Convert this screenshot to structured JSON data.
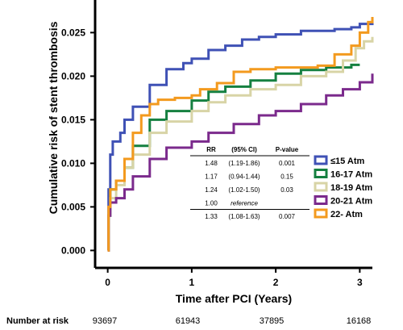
{
  "chart_data": {
    "type": "line",
    "xlabel": "Time after PCI (Years)",
    "ylabel": "Cumulative risk of stent thrombosis",
    "xlim": [
      -0.15,
      3.15
    ],
    "ylim": [
      -0.002,
      0.028
    ],
    "x_ticks": [
      0,
      1,
      2,
      3
    ],
    "x_tick_labels": [
      "0",
      "1",
      "2",
      "3"
    ],
    "y_ticks": [
      0.0,
      0.005,
      0.01,
      0.015,
      0.02,
      0.025
    ],
    "y_tick_labels": [
      "0.000",
      "0.005",
      "0.010",
      "0.015",
      "0.020",
      "0.025"
    ],
    "series": [
      {
        "name": "≤15 Atm",
        "color": "#3f51b5",
        "points": [
          [
            0,
            0
          ],
          [
            0.01,
            0.007
          ],
          [
            0.03,
            0.011
          ],
          [
            0.06,
            0.0125
          ],
          [
            0.15,
            0.0135
          ],
          [
            0.2,
            0.015
          ],
          [
            0.3,
            0.0165
          ],
          [
            0.5,
            0.019
          ],
          [
            0.7,
            0.0208
          ],
          [
            0.9,
            0.0215
          ],
          [
            1.0,
            0.022
          ],
          [
            1.2,
            0.023
          ],
          [
            1.4,
            0.0235
          ],
          [
            1.6,
            0.0242
          ],
          [
            1.8,
            0.0245
          ],
          [
            2.0,
            0.0248
          ],
          [
            2.3,
            0.0252
          ],
          [
            2.7,
            0.0254
          ],
          [
            2.9,
            0.0256
          ],
          [
            3.0,
            0.026
          ],
          [
            3.15,
            0.0262
          ]
        ]
      },
      {
        "name": "16-17 Atm",
        "color": "#158040",
        "points": [
          [
            0,
            0
          ],
          [
            0.01,
            0.004
          ],
          [
            0.03,
            0.007
          ],
          [
            0.1,
            0.008
          ],
          [
            0.2,
            0.0095
          ],
          [
            0.3,
            0.012
          ],
          [
            0.5,
            0.015
          ],
          [
            0.7,
            0.016
          ],
          [
            1.0,
            0.0172
          ],
          [
            1.2,
            0.0182
          ],
          [
            1.4,
            0.0188
          ],
          [
            1.7,
            0.0195
          ],
          [
            2.0,
            0.0203
          ],
          [
            2.3,
            0.0207
          ],
          [
            2.6,
            0.021
          ],
          [
            2.8,
            0.021
          ],
          [
            2.9,
            0.0213
          ],
          [
            3.0,
            0.0213
          ]
        ]
      },
      {
        "name": "18-19 Atm",
        "color": "#d8d4a6",
        "points": [
          [
            0,
            0
          ],
          [
            0.01,
            0.004
          ],
          [
            0.03,
            0.006
          ],
          [
            0.1,
            0.0075
          ],
          [
            0.2,
            0.0095
          ],
          [
            0.3,
            0.011
          ],
          [
            0.5,
            0.0135
          ],
          [
            0.7,
            0.0148
          ],
          [
            1.0,
            0.016
          ],
          [
            1.2,
            0.017
          ],
          [
            1.4,
            0.0178
          ],
          [
            1.7,
            0.0185
          ],
          [
            2.0,
            0.019
          ],
          [
            2.3,
            0.02
          ],
          [
            2.6,
            0.0205
          ],
          [
            2.8,
            0.0218
          ],
          [
            2.95,
            0.0232
          ],
          [
            3.05,
            0.024
          ],
          [
            3.15,
            0.0245
          ]
        ]
      },
      {
        "name": "20-21 Atm",
        "color": "#7b2a8c",
        "points": [
          [
            0,
            0
          ],
          [
            0.01,
            0.004
          ],
          [
            0.03,
            0.0055
          ],
          [
            0.1,
            0.006
          ],
          [
            0.2,
            0.007
          ],
          [
            0.3,
            0.0085
          ],
          [
            0.5,
            0.0105
          ],
          [
            0.7,
            0.0118
          ],
          [
            1.0,
            0.0125
          ],
          [
            1.2,
            0.0135
          ],
          [
            1.5,
            0.0145
          ],
          [
            1.8,
            0.0155
          ],
          [
            2.0,
            0.016
          ],
          [
            2.3,
            0.0168
          ],
          [
            2.6,
            0.0178
          ],
          [
            2.8,
            0.0185
          ],
          [
            3.0,
            0.0193
          ],
          [
            3.15,
            0.0203
          ]
        ]
      },
      {
        "name": "22- Atm",
        "color": "#f39a1e",
        "points": [
          [
            0,
            0
          ],
          [
            0.01,
            0.005
          ],
          [
            0.03,
            0.007
          ],
          [
            0.1,
            0.008
          ],
          [
            0.2,
            0.0105
          ],
          [
            0.3,
            0.0135
          ],
          [
            0.4,
            0.0155
          ],
          [
            0.5,
            0.0168
          ],
          [
            0.6,
            0.0173
          ],
          [
            0.8,
            0.0175
          ],
          [
            1.0,
            0.0178
          ],
          [
            1.1,
            0.0185
          ],
          [
            1.3,
            0.0192
          ],
          [
            1.5,
            0.0205
          ],
          [
            1.7,
            0.0208
          ],
          [
            2.0,
            0.021
          ],
          [
            2.3,
            0.021
          ],
          [
            2.5,
            0.0212
          ],
          [
            2.7,
            0.0225
          ],
          [
            2.9,
            0.0235
          ],
          [
            3.0,
            0.025
          ],
          [
            3.1,
            0.0262
          ],
          [
            3.15,
            0.0268
          ]
        ]
      }
    ],
    "table": {
      "headers": [
        "RR",
        "(95% CI)",
        "P-value"
      ],
      "rows": [
        [
          "1.48",
          "(1.19-1.86)",
          "0.001"
        ],
        [
          "1.17",
          "(0.94-1.44)",
          "0.15"
        ],
        [
          "1.24",
          "(1.02-1.50)",
          "0.03"
        ],
        [
          "1.00",
          "reference",
          ""
        ],
        [
          "1.33",
          "(1.08-1.63)",
          "0.007"
        ]
      ]
    },
    "number_at_risk": {
      "label": "Number at risk",
      "values": [
        "93697",
        "61943",
        "37895",
        "16168"
      ]
    }
  }
}
